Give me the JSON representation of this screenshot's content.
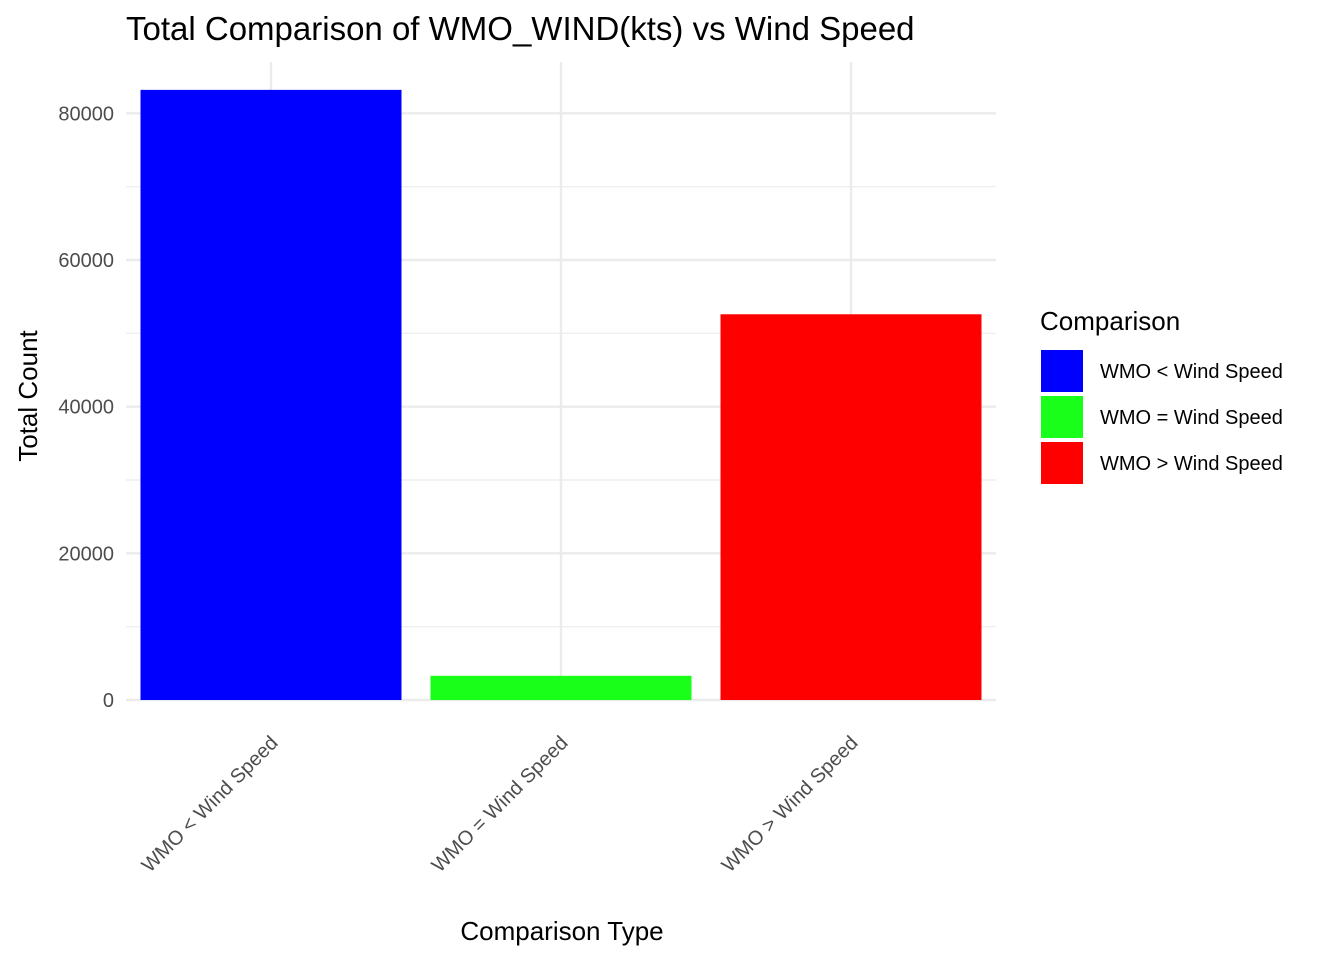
{
  "chart_data": {
    "type": "bar",
    "title": "Total Comparison of WMO_WIND(kts) vs Wind Speed",
    "xlabel": "Comparison Type",
    "ylabel": "Total Count",
    "categories": [
      "WMO < Wind Speed",
      "WMO = Wind Speed",
      "WMO > Wind Speed"
    ],
    "values": [
      83200,
      3300,
      52600
    ],
    "colors": [
      "#0000ff",
      "#1aff1a",
      "#ff0000"
    ],
    "ylim": [
      0,
      87000
    ],
    "yticks": [
      0,
      20000,
      40000,
      60000,
      80000
    ],
    "ytick_labels": [
      "0",
      "20000",
      "40000",
      "60000",
      "80000"
    ],
    "grid": true,
    "legend": {
      "title": "Comparison",
      "placement": "right",
      "entries": [
        {
          "label": "WMO < Wind Speed",
          "color": "#0000ff"
        },
        {
          "label": "WMO = Wind Speed",
          "color": "#1aff1a"
        },
        {
          "label": "WMO > Wind Speed",
          "color": "#ff0000"
        }
      ]
    }
  }
}
